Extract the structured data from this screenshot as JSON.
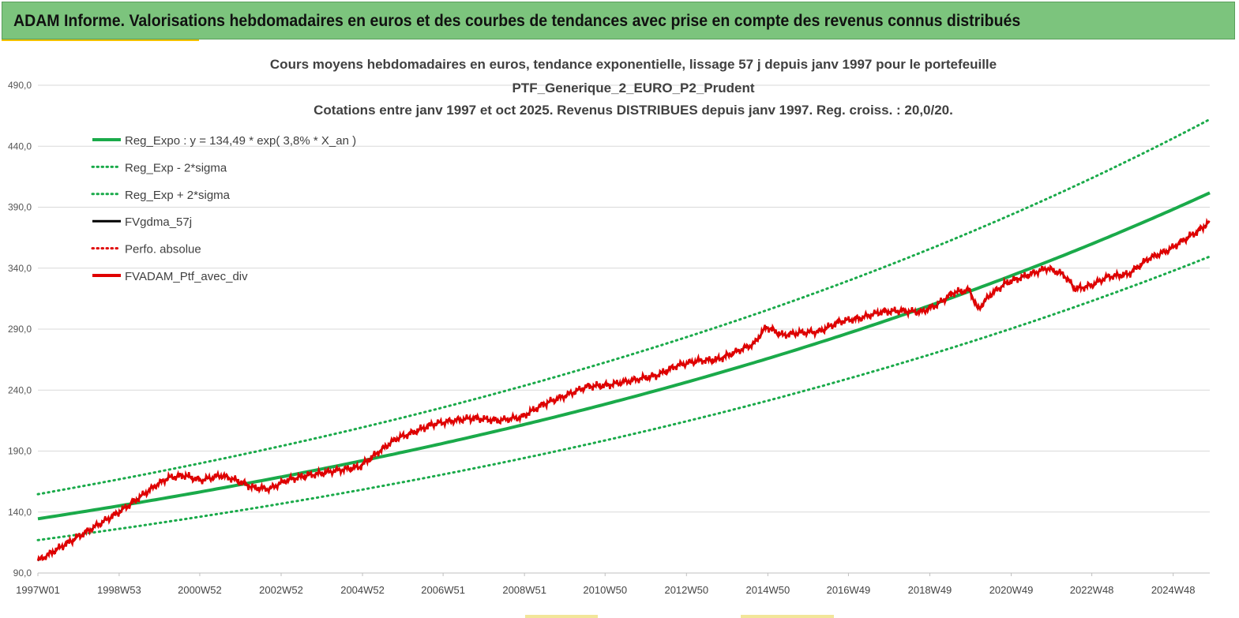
{
  "banner": {
    "title": "ADAM Informe. Valorisations hebdomadaires en euros et des courbes de tendances avec prise en compte des revenus connus distribués"
  },
  "chart_data": {
    "type": "line",
    "title_lines": [
      "Cours moyens hebdomadaires  en euros, tendance exponentielle, lissage 57 j depuis janv 1997 pour le portefeuille",
      "PTF_Generique_2_EURO_P2_Prudent",
      "Cotations  entre janv 1997 et oct 2025. Revenus DISTRIBUES depuis janv 1997. Reg. croiss. : 20,0/20."
    ],
    "xlabel": "",
    "ylabel": "",
    "ylim": [
      90,
      490
    ],
    "xlim": [
      1997.0,
      2025.8
    ],
    "y_ticks": [
      "90,0",
      "140,0",
      "190,0",
      "240,0",
      "290,0",
      "340,0",
      "390,0",
      "440,0",
      "490,0"
    ],
    "x_ticks": [
      "1997W01",
      "1998W53",
      "2000W52",
      "2002W52",
      "2004W52",
      "2006W51",
      "2008W51",
      "2010W50",
      "2012W50",
      "2014W50",
      "2016W49",
      "2018W49",
      "2020W49",
      "2022W48",
      "2024W48"
    ],
    "grid": true,
    "legend_position": "top-left",
    "regression": {
      "a": 134.49,
      "rate": 0.038,
      "sigma_low": 0.87,
      "sigma_high": 1.15
    },
    "series": [
      {
        "name": "Reg_Expo : y = 134,49 * exp( 3,8% *  X_an )",
        "color": "#1aaa4a",
        "style": "solid-thick",
        "kind": "reg"
      },
      {
        "name": "Reg_Exp - 2*sigma",
        "color": "#1aaa4a",
        "style": "dotted",
        "kind": "reg_low"
      },
      {
        "name": "Reg_Exp + 2*sigma",
        "color": "#1aaa4a",
        "style": "dotted",
        "kind": "reg_high"
      },
      {
        "name": "FVgdma_57j",
        "color": "#000000",
        "style": "solid",
        "kind": "smooth"
      },
      {
        "name": "Perfo. absolue",
        "color": "#e00000",
        "style": "dotted",
        "kind": "perfo"
      },
      {
        "name": "FVADAM_Ptf_avec_div",
        "color": "#e00000",
        "style": "solid-thick",
        "kind": "price"
      }
    ],
    "price_points": [
      [
        1997.0,
        100
      ],
      [
        1997.5,
        110
      ],
      [
        1998.0,
        120
      ],
      [
        1998.5,
        130
      ],
      [
        1999.0,
        140
      ],
      [
        1999.5,
        152
      ],
      [
        1999.9,
        162
      ],
      [
        2000.2,
        168
      ],
      [
        2000.6,
        170
      ],
      [
        2001.0,
        166
      ],
      [
        2001.5,
        170
      ],
      [
        2001.8,
        167
      ],
      [
        2002.3,
        160
      ],
      [
        2002.7,
        159
      ],
      [
        2003.1,
        166
      ],
      [
        2003.6,
        170
      ],
      [
        2004.0,
        172
      ],
      [
        2004.5,
        175
      ],
      [
        2004.9,
        177
      ],
      [
        2005.4,
        190
      ],
      [
        2005.8,
        200
      ],
      [
        2006.2,
        205
      ],
      [
        2006.7,
        212
      ],
      [
        2007.2,
        215
      ],
      [
        2007.7,
        217
      ],
      [
        2008.3,
        215
      ],
      [
        2008.9,
        218
      ],
      [
        2009.4,
        228
      ],
      [
        2010.0,
        236
      ],
      [
        2010.5,
        243
      ],
      [
        2011.0,
        244
      ],
      [
        2011.6,
        248
      ],
      [
        2012.2,
        252
      ],
      [
        2012.7,
        260
      ],
      [
        2013.2,
        264
      ],
      [
        2013.7,
        265
      ],
      [
        2014.2,
        272
      ],
      [
        2014.6,
        278
      ],
      [
        2014.9,
        292
      ],
      [
        2015.3,
        285
      ],
      [
        2015.7,
        287
      ],
      [
        2016.2,
        288
      ],
      [
        2016.7,
        296
      ],
      [
        2017.2,
        299
      ],
      [
        2017.7,
        304
      ],
      [
        2018.2,
        305
      ],
      [
        2018.7,
        304
      ],
      [
        2019.1,
        310
      ],
      [
        2019.5,
        320
      ],
      [
        2019.9,
        322
      ],
      [
        2020.1,
        306
      ],
      [
        2020.4,
        318
      ],
      [
        2020.8,
        328
      ],
      [
        2021.3,
        334
      ],
      [
        2021.8,
        340
      ],
      [
        2022.2,
        335
      ],
      [
        2022.5,
        323
      ],
      [
        2022.9,
        326
      ],
      [
        2023.3,
        333
      ],
      [
        2023.8,
        335
      ],
      [
        2024.3,
        348
      ],
      [
        2024.8,
        355
      ],
      [
        2025.2,
        364
      ],
      [
        2025.5,
        370
      ],
      [
        2025.8,
        378
      ]
    ]
  }
}
